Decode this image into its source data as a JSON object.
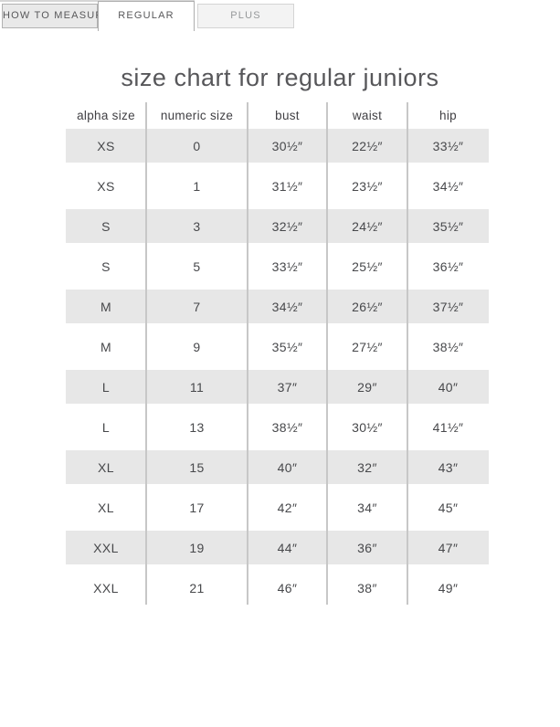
{
  "tab_bar": {
    "tabs": [
      {
        "label": "HOW TO MEASURE",
        "active": false
      },
      {
        "label": "REGULAR",
        "active": true
      },
      {
        "label": "PLUS",
        "active": false
      }
    ]
  },
  "title": "size chart for regular juniors",
  "table": {
    "headers": [
      "alpha size",
      "numeric size",
      "bust",
      "waist",
      "hip"
    ],
    "rows": [
      [
        "XS",
        "0",
        "30½″",
        "22½″",
        "33½″"
      ],
      [
        "XS",
        "1",
        "31½″",
        "23½″",
        "34½″"
      ],
      [
        "S",
        "3",
        "32½″",
        "24½″",
        "35½″"
      ],
      [
        "S",
        "5",
        "33½″",
        "25½″",
        "36½″"
      ],
      [
        "M",
        "7",
        "34½″",
        "26½″",
        "37½″"
      ],
      [
        "M",
        "9",
        "35½″",
        "27½″",
        "38½″"
      ],
      [
        "L",
        "11",
        "37″",
        "29″",
        "40″"
      ],
      [
        "L",
        "13",
        "38½″",
        "30½″",
        "41½″"
      ],
      [
        "XL",
        "15",
        "40″",
        "32″",
        "43″"
      ],
      [
        "XL",
        "17",
        "42″",
        "34″",
        "45″"
      ],
      [
        "XXL",
        "19",
        "44″",
        "36″",
        "47″"
      ],
      [
        "XXL",
        "21",
        "46″",
        "38″",
        "49″"
      ]
    ]
  },
  "colors": {
    "shaded_row": "#e7e7e7",
    "column_separator": "#c7c7c7",
    "active_tab_background": "#ffffff",
    "inactive_tab_background": "#e9e9e9",
    "plus_tab_background": "#f3f3f3",
    "tab_border": "#b2b2b2",
    "table_text": "#47484b",
    "title_text": "#57575a"
  }
}
